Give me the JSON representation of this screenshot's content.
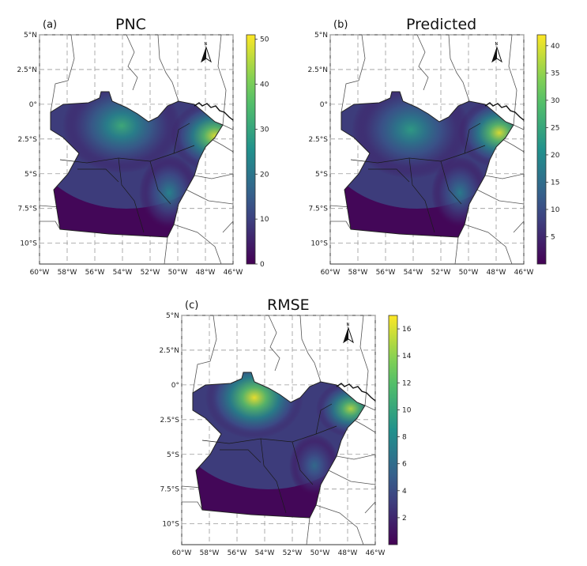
{
  "panels": [
    {
      "label": "(a)",
      "title": "PNC",
      "colorbar_ticks": [
        "0",
        "10",
        "20",
        "30",
        "40",
        "50"
      ],
      "colorbar_range": [
        0,
        51
      ]
    },
    {
      "label": "(b)",
      "title": "Predicted",
      "colorbar_ticks": [
        "5",
        "10",
        "15",
        "20",
        "25",
        "30",
        "35",
        "40"
      ],
      "colorbar_range": [
        0,
        42
      ]
    },
    {
      "label": "(c)",
      "title": "RMSE",
      "colorbar_ticks": [
        "2",
        "4",
        "6",
        "8",
        "10",
        "12",
        "14",
        "16"
      ],
      "colorbar_range": [
        0,
        17
      ]
    }
  ],
  "lat_ticks": [
    "5°N",
    "2.5°N",
    "0°",
    "2.5°S",
    "5°S",
    "7.5°S",
    "10°S"
  ],
  "lon_ticks": [
    "60°W",
    "58°W",
    "56°W",
    "54°W",
    "52°W",
    "50°W",
    "48°W",
    "46°W"
  ],
  "north_arrow_label": "N",
  "colormap": "viridis",
  "colors": {
    "low": "#440154",
    "mid": "#21918c",
    "high": "#fde725"
  }
}
